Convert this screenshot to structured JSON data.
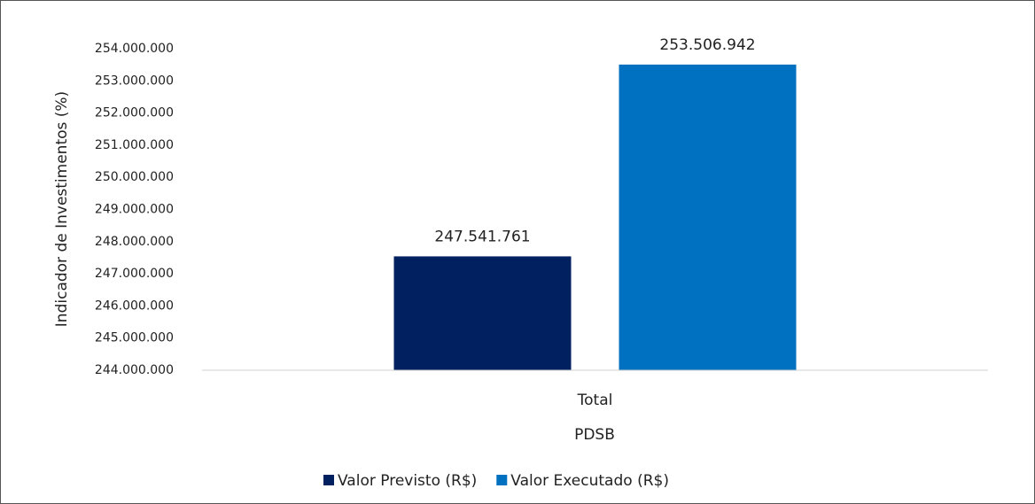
{
  "chart_data": {
    "type": "bar",
    "x_label": "PDSB",
    "y_label": "Indicador de Investimentos  (%)",
    "categories": [
      "Total"
    ],
    "series": [
      {
        "name": "Valor Previsto (R$)",
        "color": "#002060",
        "values": [
          247541761
        ],
        "value_labels": [
          "247.541.761"
        ]
      },
      {
        "name": "Valor Executado (R$)",
        "color": "#0070c0",
        "values": [
          253506942
        ],
        "value_labels": [
          "253.506.942"
        ]
      }
    ],
    "ylim": [
      244000000,
      254000000
    ],
    "yticks": [
      {
        "value": 244000000,
        "label": "244.000.000"
      },
      {
        "value": 245000000,
        "label": "245.000.000"
      },
      {
        "value": 246000000,
        "label": "246.000.000"
      },
      {
        "value": 247000000,
        "label": "247.000.000"
      },
      {
        "value": 248000000,
        "label": "248.000.000"
      },
      {
        "value": 249000000,
        "label": "249.000.000"
      },
      {
        "value": 250000000,
        "label": "250.000.000"
      },
      {
        "value": 251000000,
        "label": "251.000.000"
      },
      {
        "value": 252000000,
        "label": "252.000.000"
      },
      {
        "value": 253000000,
        "label": "253.000.000"
      },
      {
        "value": 254000000,
        "label": "254.000.000"
      }
    ],
    "grid": false,
    "legend": "bottom"
  }
}
